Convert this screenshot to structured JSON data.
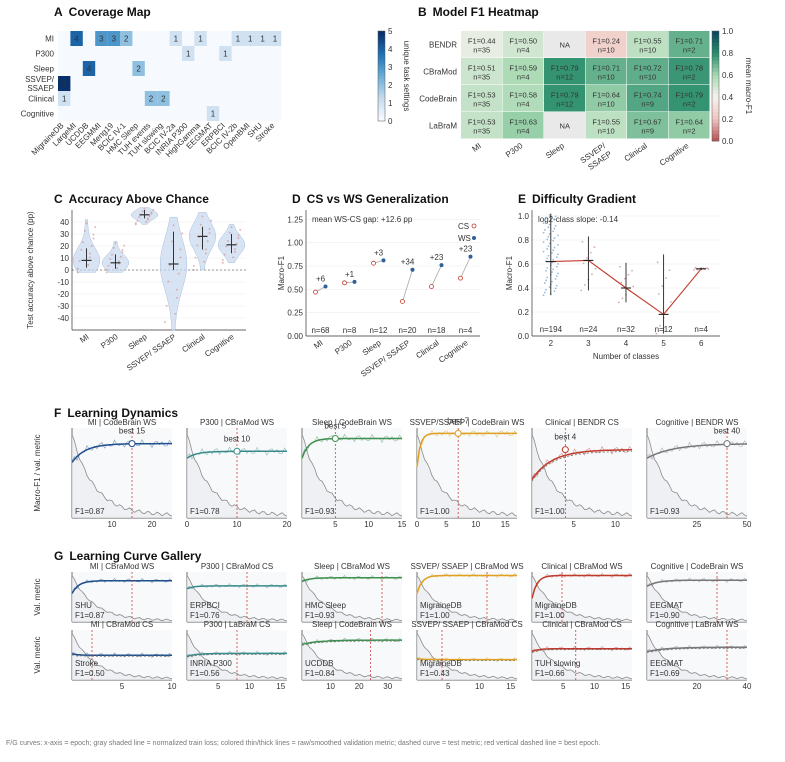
{
  "panels": {
    "A": {
      "letter": "A",
      "title": "Coverage Map"
    },
    "B": {
      "letter": "B",
      "title": "Model F1 Heatmap"
    },
    "C": {
      "letter": "C",
      "title": "Accuracy Above Chance"
    },
    "D": {
      "letter": "D",
      "title": "CS vs WS Generalization"
    },
    "E": {
      "letter": "E",
      "title": "Difficulty Gradient"
    },
    "F": {
      "letter": "F",
      "title": "Learning Dynamics"
    },
    "G": {
      "letter": "G",
      "title": "Learning Curve Gallery"
    }
  },
  "footnote": "F/G curves: x-axis = epoch; gray shaded line = normalized train loss; colored thin/thick lines = raw/smoothed validation metric; dashed curve = test metric; red vertical dashed line = best epoch.",
  "chart_data": [
    {
      "id": "A",
      "type": "heatmap",
      "title": "Coverage Map",
      "rows": [
        "MI",
        "P300",
        "Sleep",
        "SSVEP/\nSSAEP",
        "Clinical",
        "Cognitive"
      ],
      "cols": [
        "MigraineDB",
        "LargeMI",
        "UCDDB",
        "EEGMMI",
        "Meng19",
        "BCIC IV-1",
        "HMC Sleep",
        "TUH events",
        "TUH slowing",
        "BCIC IV-2a",
        "INRIA P300",
        "HighGamma",
        "EEGMAT",
        "ERPBCI",
        "BCIC IV-2b",
        "OpenBMI",
        "SHU",
        "Stroke"
      ],
      "cells": [
        {
          "r": 0,
          "c": 1,
          "v": 4
        },
        {
          "r": 0,
          "c": 3,
          "v": 3
        },
        {
          "r": 0,
          "c": 4,
          "v": 3
        },
        {
          "r": 0,
          "c": 5,
          "v": 2
        },
        {
          "r": 0,
          "c": 9,
          "v": 1
        },
        {
          "r": 0,
          "c": 11,
          "v": 1
        },
        {
          "r": 0,
          "c": 14,
          "v": 1
        },
        {
          "r": 0,
          "c": 15,
          "v": 1
        },
        {
          "r": 0,
          "c": 16,
          "v": 1
        },
        {
          "r": 0,
          "c": 17,
          "v": 1
        },
        {
          "r": 1,
          "c": 10,
          "v": 1
        },
        {
          "r": 1,
          "c": 13,
          "v": 1
        },
        {
          "r": 2,
          "c": 2,
          "v": 4
        },
        {
          "r": 2,
          "c": 6,
          "v": 2
        },
        {
          "r": 3,
          "c": 0,
          "v": 5
        },
        {
          "r": 4,
          "c": 0,
          "v": 1
        },
        {
          "r": 4,
          "c": 7,
          "v": 2
        },
        {
          "r": 4,
          "c": 8,
          "v": 2
        },
        {
          "r": 5,
          "c": 12,
          "v": 1
        }
      ],
      "colorbar": {
        "label": "unique task settings",
        "min": 0,
        "max": 5,
        "ticks": [
          "0",
          "1",
          "2",
          "3",
          "4",
          "5"
        ]
      }
    },
    {
      "id": "B",
      "type": "heatmap",
      "title": "Model F1 Heatmap",
      "rows": [
        "BENDR",
        "CBraMod",
        "CodeBrain",
        "LaBraM"
      ],
      "cols": [
        "MI",
        "P300",
        "Sleep",
        "SSVEP/\nSSAEP",
        "Clinical",
        "Cognitive"
      ],
      "cells": [
        [
          {
            "f1": 0.44,
            "n": 35
          },
          {
            "f1": 0.5,
            "n": 4
          },
          null,
          {
            "f1": 0.24,
            "n": 10
          },
          {
            "f1": 0.55,
            "n": 10
          },
          {
            "f1": 0.71,
            "n": 2
          }
        ],
        [
          {
            "f1": 0.51,
            "n": 35
          },
          {
            "f1": 0.59,
            "n": 4
          },
          {
            "f1": 0.79,
            "n": 12
          },
          {
            "f1": 0.71,
            "n": 10
          },
          {
            "f1": 0.72,
            "n": 10
          },
          {
            "f1": 0.78,
            "n": 2
          }
        ],
        [
          {
            "f1": 0.53,
            "n": 35
          },
          {
            "f1": 0.58,
            "n": 4
          },
          {
            "f1": 0.79,
            "n": 12
          },
          {
            "f1": 0.64,
            "n": 10
          },
          {
            "f1": 0.74,
            "n": 9
          },
          {
            "f1": 0.79,
            "n": 2
          }
        ],
        [
          {
            "f1": 0.53,
            "n": 35
          },
          {
            "f1": 0.63,
            "n": 4
          },
          null,
          {
            "f1": 0.55,
            "n": 10
          },
          {
            "f1": 0.67,
            "n": 9
          },
          {
            "f1": 0.64,
            "n": 2
          }
        ]
      ],
      "na_label": "NA",
      "colorbar": {
        "label": "mean macro-F1",
        "min": 0,
        "max": 1,
        "ticks": [
          "0.0",
          "0.2",
          "0.4",
          "0.6",
          "0.8",
          "1.0"
        ]
      }
    },
    {
      "id": "C",
      "type": "violin",
      "title": "Accuracy Above Chance",
      "ylabel": "Test accuracy above chance (pp)",
      "categories": [
        "MI",
        "P300",
        "Sleep",
        "SSVEP/ SSAEP",
        "Clinical",
        "Cognitive"
      ],
      "ylim": [
        -50,
        50
      ],
      "yticks": [
        -40,
        -30,
        -20,
        -10,
        0,
        10,
        20,
        30,
        40
      ],
      "median": [
        8,
        6,
        46,
        5,
        28,
        21
      ],
      "q_low": [
        2,
        1,
        43,
        0,
        17,
        14
      ],
      "q_high": [
        18,
        13,
        50,
        32,
        36,
        30
      ],
      "range_low": [
        -2,
        -2,
        38,
        -50,
        0,
        6
      ],
      "range_high": [
        42,
        24,
        52,
        44,
        48,
        38
      ]
    },
    {
      "id": "D",
      "type": "dumbbell",
      "title": "CS vs WS Generalization",
      "ylabel": "Macro-F1",
      "annotation": "mean WS-CS gap: +12.6 pp",
      "legend": [
        "CS",
        "WS"
      ],
      "categories": [
        "MI",
        "P300",
        "Sleep",
        "SSVEP/ SSAEP",
        "Clinical",
        "Cognitive"
      ],
      "cs": [
        0.47,
        0.57,
        0.78,
        0.37,
        0.53,
        0.62
      ],
      "ws": [
        0.53,
        0.58,
        0.81,
        0.71,
        0.76,
        0.85
      ],
      "gap_labels": [
        "+6",
        "+1",
        "+3",
        "+34",
        "+23",
        "+23"
      ],
      "n_labels": [
        "n=68",
        "n=8",
        "n=12",
        "n=20",
        "n=18",
        "n=4"
      ],
      "ylim": [
        0,
        1.35
      ],
      "yticks": [
        "0.00",
        "0.25",
        "0.50",
        "0.75",
        "1.00",
        "1.25"
      ]
    },
    {
      "id": "E",
      "type": "strip-line",
      "title": "Difficulty Gradient",
      "ylabel": "Macro-F1",
      "xlabel": "Number of classes",
      "annotation": "log2-class slope: -0.14",
      "x": [
        2,
        3,
        4,
        5,
        6
      ],
      "medians": [
        0.62,
        0.63,
        0.4,
        0.18,
        0.56
      ],
      "low": [
        0.34,
        0.38,
        0.28,
        0.02,
        0.55
      ],
      "high": [
        1.02,
        0.83,
        0.61,
        0.68,
        0.57
      ],
      "n_labels": [
        "n=194",
        "n=24",
        "n=32",
        "n=12",
        "n=4"
      ],
      "ylim": [
        0,
        1.05
      ],
      "yticks": [
        "0.0",
        "0.2",
        "0.4",
        "0.6",
        "0.8",
        "1.0"
      ]
    },
    {
      "id": "F",
      "type": "line",
      "title": "Learning Dynamics",
      "ylabel": "Macro-F1 / val. metric",
      "subplots": [
        {
          "title": "MI | CodeBrain WS",
          "title_color": "#c0392b",
          "color": "#1f4e8c",
          "best_label": "best 15",
          "best": 15,
          "xmax": 25,
          "xticks": [
            10,
            20
          ],
          "f1_text": "F1=0.87",
          "start": 0.65,
          "plateau": 0.87,
          "rise": 4
        },
        {
          "title": "P300 | CBraMod WS",
          "title_color": "#2f74b5",
          "color": "#3a8a8a",
          "best_label": "best 10",
          "best": 10,
          "xmax": 20,
          "xticks": [
            0,
            10,
            20
          ],
          "f1_text": "F1=0.78",
          "start": 0.7,
          "plateau": 0.78,
          "rise": 3
        },
        {
          "title": "Sleep | CodeBrain WS",
          "title_color": "#c0392b",
          "color": "#3f8f4f",
          "best_label": "best 5",
          "best": 5,
          "xmax": 15,
          "xticks": [
            5,
            10,
            15
          ],
          "f1_text": "F1=0.93",
          "start": 0.7,
          "plateau": 0.93,
          "rise": 2
        },
        {
          "title": "SSVEP/SSAEP | CodeBrain WS",
          "title_color": "#2f74b5",
          "color": "#e0a020",
          "best_label": "best 7",
          "best": 7,
          "xmax": 17,
          "xticks": [
            0,
            5,
            10,
            15
          ],
          "f1_text": "F1=1.00",
          "start": 0.6,
          "plateau": 0.99,
          "rise": 1
        },
        {
          "title": "Clinical | BENDR CS",
          "title_color": "#c0392b",
          "color": "#c0392b",
          "best_label": "best 4",
          "best": 4,
          "xmax": 12,
          "xticks": [
            5,
            10
          ],
          "f1_text": "F1=1.00",
          "start": 0.45,
          "plateau": 0.8,
          "rise": 6
        },
        {
          "title": "Cognitive | BENDR WS",
          "title_color": "#2f74b5",
          "color": "#777777",
          "best_label": "best 40",
          "best": 40,
          "xmax": 50,
          "xticks": [
            25,
            50
          ],
          "f1_text": "F1=0.93",
          "start": 0.7,
          "plateau": 0.87,
          "rise": 8
        }
      ]
    },
    {
      "id": "G",
      "type": "line",
      "title": "Learning Curve Gallery",
      "ylabel": "Val. metric",
      "subplots": [
        {
          "title": "MI | CBraMod WS",
          "title_color": "#c0392b",
          "color": "#1f4e8c",
          "dataset": "SHU",
          "f1_text": "F1=0.87",
          "best": 6,
          "xmax": 10,
          "start": 0.6,
          "plateau": 0.87,
          "rise": 2,
          "xticks": []
        },
        {
          "title": "P300 | CBraMod CS",
          "title_color": "#2f74b5",
          "color": "#3a8a8a",
          "dataset": "ERPBCI",
          "f1_text": "F1=0.76",
          "best": 6,
          "xmax": 10,
          "start": 0.7,
          "plateau": 0.76,
          "rise": 2,
          "xticks": []
        },
        {
          "title": "Sleep | CBraMod WS",
          "title_color": "#c0392b",
          "color": "#3f8f4f",
          "dataset": "HMC Sleep",
          "f1_text": "F1=0.93",
          "best": 8,
          "xmax": 10,
          "start": 0.85,
          "plateau": 0.93,
          "rise": 2,
          "xticks": []
        },
        {
          "title": "SSVEP/ SSAEP | CBraMod WS",
          "title_color": "#2f74b5",
          "color": "#e0a020",
          "dataset": "MigraineDB",
          "f1_text": "F1=1.00",
          "best": 7,
          "xmax": 10,
          "start": 0.6,
          "plateau": 0.98,
          "rise": 1,
          "xticks": []
        },
        {
          "title": "Clinical | CBraMod WS",
          "title_color": "#c0392b",
          "color": "#c0392b",
          "dataset": "MigraineDB",
          "f1_text": "F1=1.00",
          "best": 3,
          "xmax": 10,
          "start": 0.5,
          "plateau": 0.98,
          "rise": 1,
          "xticks": []
        },
        {
          "title": "Cognitive | CodeBrain WS",
          "title_color": "#2f74b5",
          "color": "#777777",
          "dataset": "EEGMAT",
          "f1_text": "F1=0.90",
          "best": 7,
          "xmax": 10,
          "start": 0.75,
          "plateau": 0.88,
          "rise": 3,
          "xticks": []
        },
        {
          "title": "MI | CBraMod CS",
          "title_color": "#c0392b",
          "color": "#1f4e8c",
          "dataset": "Stroke",
          "f1_text": "F1=0.50",
          "best": 2,
          "xmax": 10,
          "start": 0.55,
          "plateau": 0.52,
          "rise": 2,
          "xticks": [
            5,
            10
          ]
        },
        {
          "title": "P300 | LaBraM CS",
          "title_color": "#2f74b5",
          "color": "#3a8a8a",
          "dataset": "INRIA P300",
          "f1_text": "F1=0.56",
          "best": 8,
          "xmax": 16,
          "start": 0.5,
          "plateau": 0.56,
          "rise": 3,
          "xticks": [
            5,
            10,
            15
          ]
        },
        {
          "title": "Sleep | CodeBrain WS",
          "title_color": "#c0392b",
          "color": "#3f8f4f",
          "dataset": "UCDDB",
          "f1_text": "F1=0.84",
          "best": 24,
          "xmax": 35,
          "start": 0.75,
          "plateau": 0.84,
          "rise": 5,
          "xticks": [
            10,
            20,
            30
          ]
        },
        {
          "title": "SSVEP/ SSAEP | CBraMod CS",
          "title_color": "#2f74b5",
          "color": "#e0a020",
          "dataset": "MigraineDB",
          "f1_text": "F1=0.43",
          "best": 4,
          "xmax": 16,
          "start": 0.45,
          "plateau": 0.43,
          "rise": 2,
          "xticks": [
            5,
            10,
            15
          ]
        },
        {
          "title": "Clinical | CBraMod CS",
          "title_color": "#c0392b",
          "color": "#c0392b",
          "dataset": "TUH slowing",
          "f1_text": "F1=0.66",
          "best": 7,
          "xmax": 16,
          "start": 0.6,
          "plateau": 0.66,
          "rise": 2,
          "xticks": [
            5,
            10,
            15
          ]
        },
        {
          "title": "Cognitive | LaBraM WS",
          "title_color": "#2f74b5",
          "color": "#777777",
          "dataset": "EEGMAT",
          "f1_text": "F1=0.69",
          "best": 32,
          "xmax": 40,
          "start": 0.6,
          "plateau": 0.69,
          "rise": 6,
          "xticks": [
            20,
            40
          ]
        }
      ]
    }
  ]
}
